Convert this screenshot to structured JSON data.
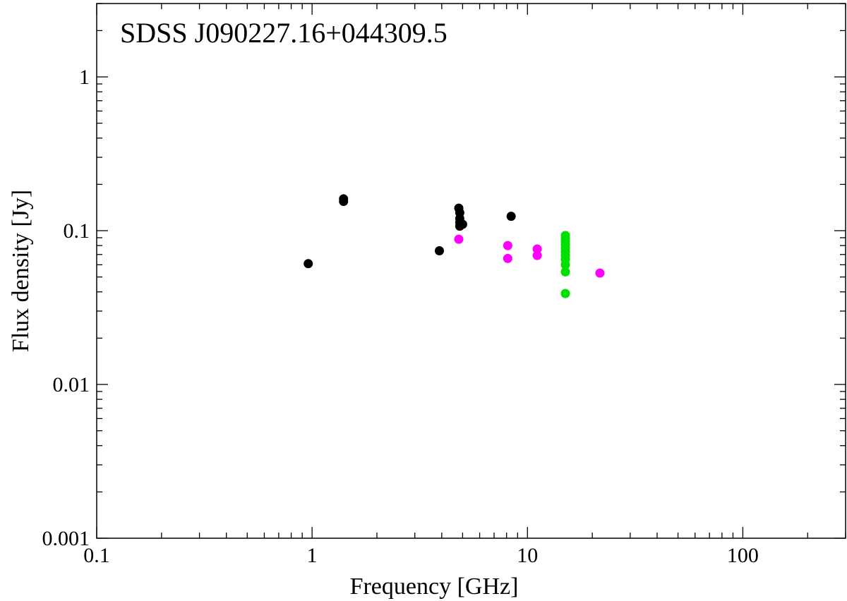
{
  "chart_data": {
    "type": "scatter",
    "title": "SDSS J090227.16+044309.5",
    "xlabel": "Frequency [GHz]",
    "ylabel": "Flux density [Jy]",
    "x_scale": "log",
    "y_scale": "log",
    "xlim": [
      0.1,
      300
    ],
    "ylim": [
      0.001,
      3
    ],
    "grid": false,
    "x_ticks": [
      {
        "value": 0.1,
        "label": "0.1"
      },
      {
        "value": 1,
        "label": "1"
      },
      {
        "value": 10,
        "label": "10"
      },
      {
        "value": 100,
        "label": "100"
      }
    ],
    "y_ticks": [
      {
        "value": 0.001,
        "label": "0.001"
      },
      {
        "value": 0.01,
        "label": "0.01"
      },
      {
        "value": 0.1,
        "label": "0.1"
      },
      {
        "value": 1,
        "label": "1"
      }
    ],
    "series": [
      {
        "color": "#000000",
        "points": [
          {
            "x": 0.96,
            "y": 0.061
          },
          {
            "x": 1.4,
            "y": 0.155
          },
          {
            "x": 1.4,
            "y": 0.161
          },
          {
            "x": 3.9,
            "y": 0.074
          },
          {
            "x": 4.8,
            "y": 0.14
          },
          {
            "x": 4.85,
            "y": 0.131
          },
          {
            "x": 4.85,
            "y": 0.12
          },
          {
            "x": 4.85,
            "y": 0.113
          },
          {
            "x": 4.85,
            "y": 0.107
          },
          {
            "x": 5.0,
            "y": 0.11
          },
          {
            "x": 8.4,
            "y": 0.124
          }
        ]
      },
      {
        "color": "#ff00ff",
        "points": [
          {
            "x": 4.8,
            "y": 0.088
          },
          {
            "x": 8.1,
            "y": 0.08
          },
          {
            "x": 8.1,
            "y": 0.066
          },
          {
            "x": 11.1,
            "y": 0.076
          },
          {
            "x": 11.1,
            "y": 0.069
          },
          {
            "x": 21.7,
            "y": 0.053
          }
        ]
      },
      {
        "color": "#00e000",
        "points": [
          {
            "x": 15.0,
            "y": 0.093
          },
          {
            "x": 15.0,
            "y": 0.089
          },
          {
            "x": 15.0,
            "y": 0.085
          },
          {
            "x": 15.0,
            "y": 0.081
          },
          {
            "x": 15.0,
            "y": 0.077
          },
          {
            "x": 15.0,
            "y": 0.073
          },
          {
            "x": 15.0,
            "y": 0.069
          },
          {
            "x": 15.0,
            "y": 0.065
          },
          {
            "x": 15.0,
            "y": 0.06
          },
          {
            "x": 15.0,
            "y": 0.054
          },
          {
            "x": 15.0,
            "y": 0.039
          }
        ]
      }
    ]
  }
}
